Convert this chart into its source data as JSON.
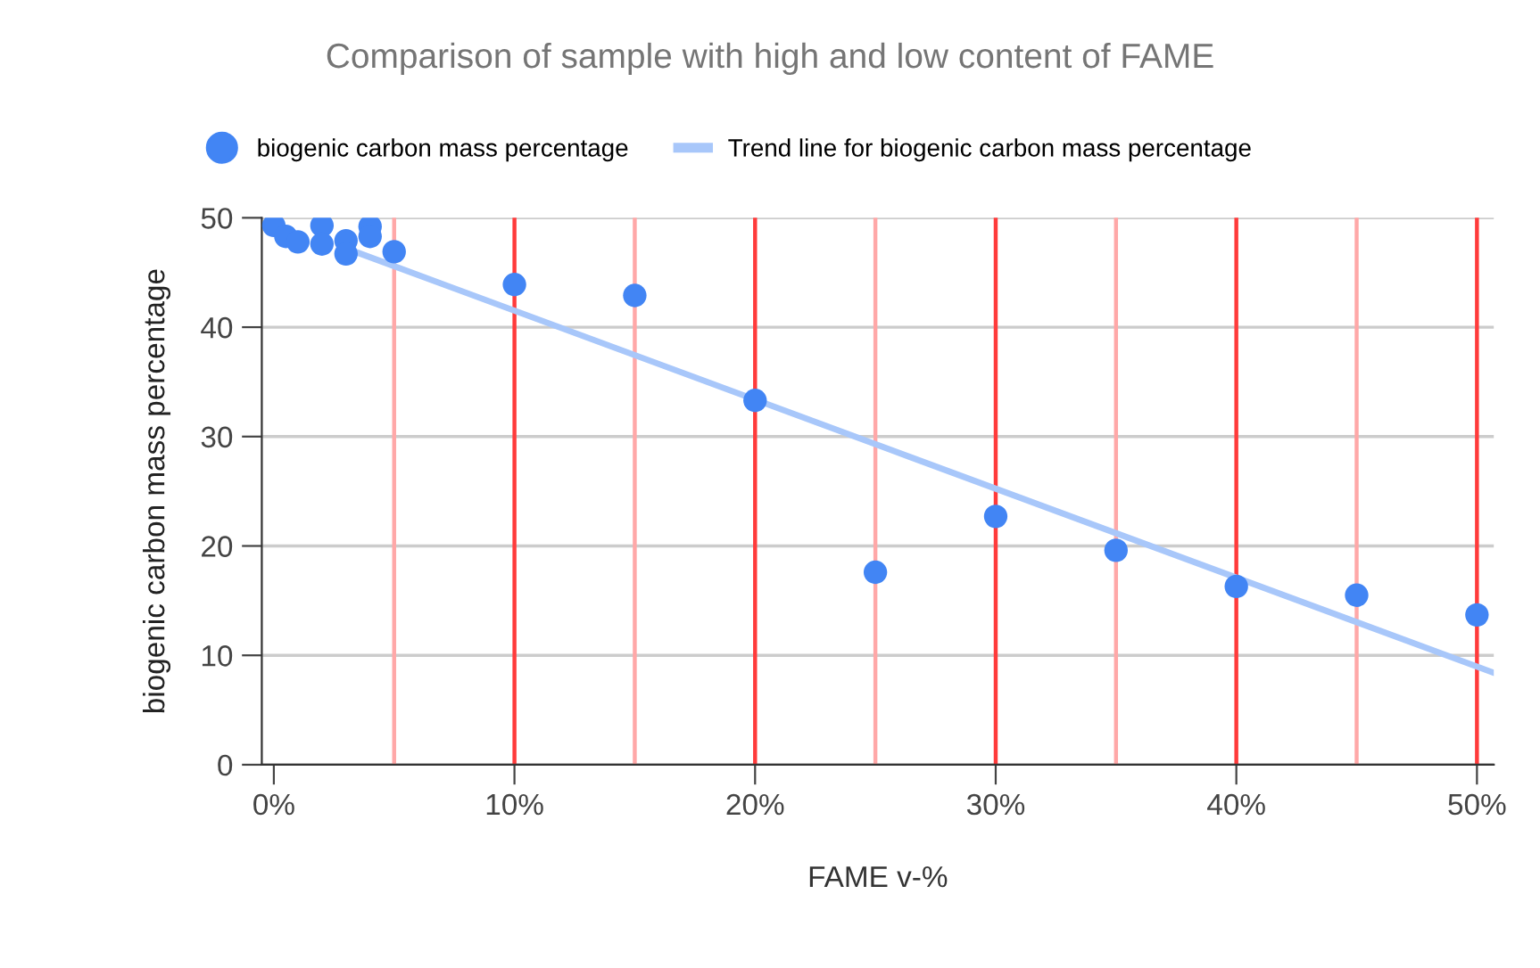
{
  "chart_data": {
    "type": "scatter",
    "title": "Comparison of sample with high and low content of FAME",
    "xlabel": "FAME v-%",
    "ylabel": "biogenic carbon mass percentage",
    "xlim": [
      -0.5,
      50.7
    ],
    "ylim": [
      0,
      50
    ],
    "xticks": [
      {
        "value": 0,
        "label": "0%"
      },
      {
        "value": 10,
        "label": "10%"
      },
      {
        "value": 20,
        "label": "20%"
      },
      {
        "value": 30,
        "label": "30%"
      },
      {
        "value": 40,
        "label": "40%"
      },
      {
        "value": 50,
        "label": "50%"
      }
    ],
    "yticks": [
      0,
      10,
      20,
      30,
      40,
      50
    ],
    "grid": "y",
    "legend": "top",
    "marker": "circle",
    "series": [
      {
        "name": "biogenic carbon mass percentage",
        "color": "#4285f4",
        "x": [
          0,
          0.5,
          1,
          2,
          2,
          3,
          3,
          4,
          4,
          5,
          10,
          15,
          20,
          25,
          30,
          35,
          40,
          45,
          50
        ],
        "values": [
          49.3,
          48.3,
          47.8,
          49.3,
          47.6,
          47.9,
          46.7,
          49.2,
          48.3,
          46.9,
          43.9,
          42.9,
          33.3,
          17.6,
          22.7,
          19.6,
          16.3,
          15.5,
          13.7
        ]
      },
      {
        "name": "Trend line for biogenic carbon mass percentage",
        "type": "line",
        "color": "#a8c7fa",
        "marker": "none",
        "line_style": "solid",
        "x": [
          3.5,
          50.7
        ],
        "values": [
          46.8,
          8.4
        ]
      }
    ],
    "ref_lines": [
      {
        "axis": "x",
        "value": 5,
        "color": "#ffa8a8"
      },
      {
        "axis": "x",
        "value": 10,
        "color": "#ff3b3b"
      },
      {
        "axis": "x",
        "value": 15,
        "color": "#ffa8a8"
      },
      {
        "axis": "x",
        "value": 20,
        "color": "#ff3b3b"
      },
      {
        "axis": "x",
        "value": 25,
        "color": "#ffa8a8"
      },
      {
        "axis": "x",
        "value": 30,
        "color": "#ff3b3b"
      },
      {
        "axis": "x",
        "value": 35,
        "color": "#ffa8a8"
      },
      {
        "axis": "x",
        "value": 40,
        "color": "#ff3b3b"
      },
      {
        "axis": "x",
        "value": 45,
        "color": "#ffa8a8"
      },
      {
        "axis": "x",
        "value": 50,
        "color": "#ff3b3b"
      }
    ]
  }
}
